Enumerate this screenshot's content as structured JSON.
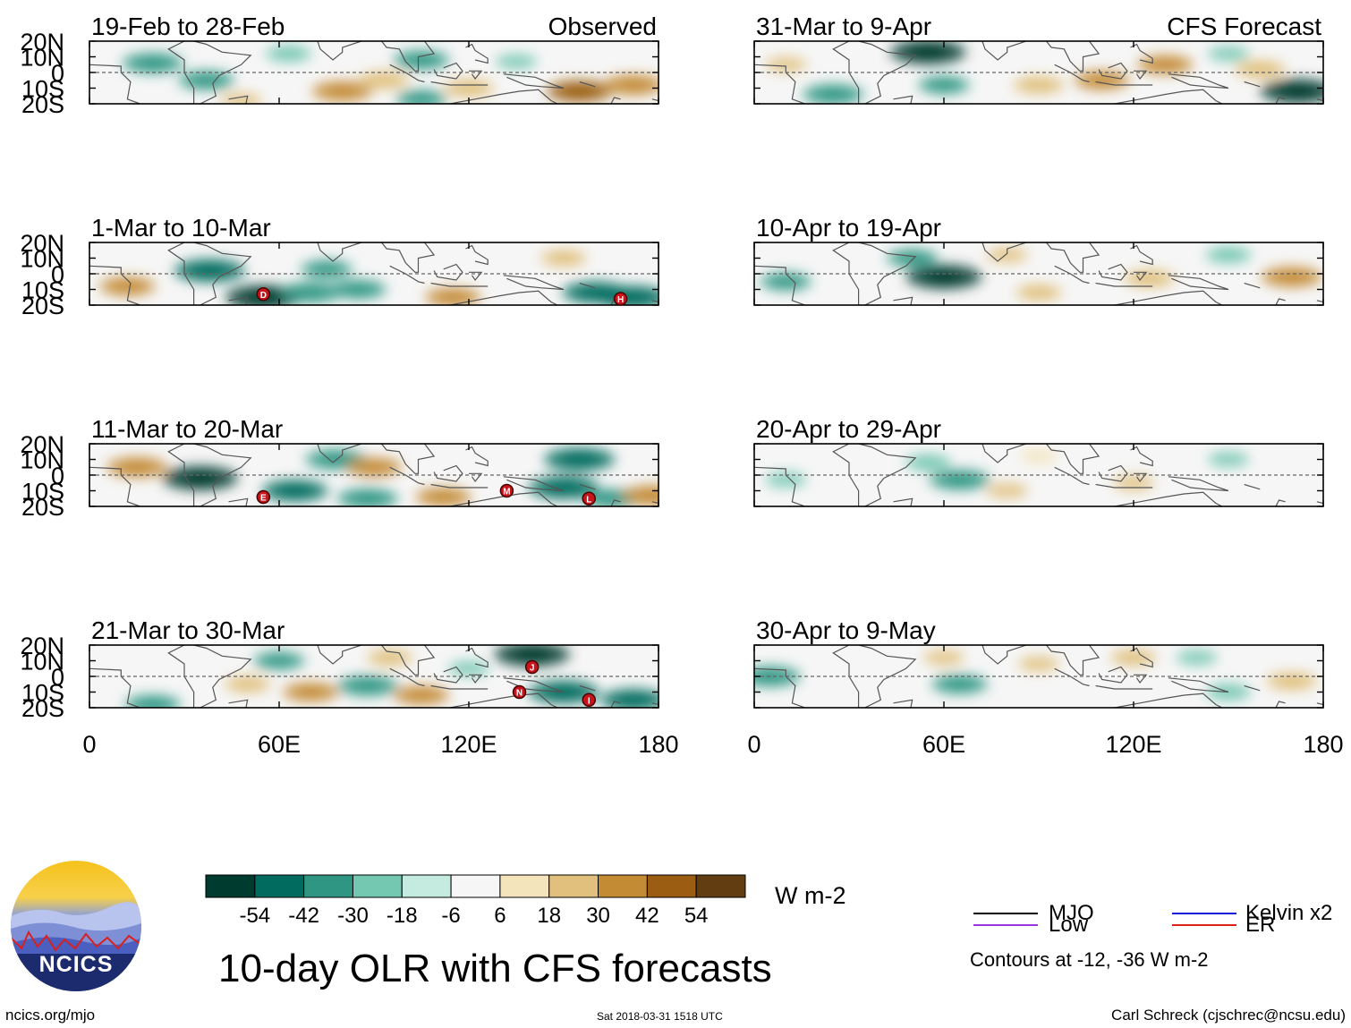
{
  "figure": {
    "title": "10-day OLR with CFS forecasts",
    "observed_label": "Observed",
    "forecast_label": "CFS Forecast"
  },
  "chart_data": {
    "type": "heatmap",
    "title": "10-day OLR with CFS forecasts",
    "variable": "OLR anomaly",
    "units": "W m-2",
    "x_ticks": [
      "0",
      "60E",
      "120E",
      "180"
    ],
    "x_range": [
      0,
      180
    ],
    "y_ticks": [
      "20N",
      "10N",
      "0",
      "10S",
      "20S"
    ],
    "y_range": [
      -20,
      20
    ],
    "colorbar": {
      "labels": [
        "-54",
        "-42",
        "-30",
        "-18",
        "-6",
        "6",
        "18",
        "30",
        "42",
        "54"
      ],
      "colors": [
        "#003b2f",
        "#006b5e",
        "#2f9684",
        "#74c7b0",
        "#c5eadf",
        "#f6f6f6",
        "#f4e4bb",
        "#e0c07c",
        "#c48b35",
        "#9a5d12",
        "#633d12"
      ]
    },
    "panels": [
      {
        "column": "Observed",
        "period": "19-Feb to 28-Feb",
        "blobs": [
          {
            "lon": 20,
            "lat": 6,
            "value": -40
          },
          {
            "lon": 37,
            "lat": -5,
            "value": -35
          },
          {
            "lon": 63,
            "lat": 12,
            "value": -25
          },
          {
            "lon": 105,
            "lat": 8,
            "value": -35
          },
          {
            "lon": 135,
            "lat": 7,
            "value": -20
          },
          {
            "lon": 105,
            "lat": -17,
            "value": -30
          },
          {
            "lon": 80,
            "lat": -12,
            "value": 40
          },
          {
            "lon": 93,
            "lat": -5,
            "value": 30
          },
          {
            "lon": 120,
            "lat": -10,
            "value": 30
          },
          {
            "lon": 155,
            "lat": -12,
            "value": 45
          },
          {
            "lon": 172,
            "lat": -8,
            "value": 40
          },
          {
            "lon": 48,
            "lat": -18,
            "value": 20
          }
        ]
      },
      {
        "column": "Observed",
        "period": "1-Mar to 10-Mar",
        "blobs": [
          {
            "lon": 38,
            "lat": 2,
            "value": -50
          },
          {
            "lon": 55,
            "lat": -15,
            "value": -55
          },
          {
            "lon": 70,
            "lat": -12,
            "value": -40
          },
          {
            "lon": 75,
            "lat": 3,
            "value": -30
          },
          {
            "lon": 85,
            "lat": -10,
            "value": -35
          },
          {
            "lon": 160,
            "lat": -12,
            "value": -45
          },
          {
            "lon": 172,
            "lat": -15,
            "value": -50
          },
          {
            "lon": 12,
            "lat": -8,
            "value": 35
          },
          {
            "lon": 115,
            "lat": -15,
            "value": 35
          },
          {
            "lon": 150,
            "lat": 10,
            "value": 25
          }
        ]
      },
      {
        "column": "Observed",
        "period": "11-Mar to 20-Mar",
        "blobs": [
          {
            "lon": 35,
            "lat": -2,
            "value": -55
          },
          {
            "lon": 65,
            "lat": -10,
            "value": -45
          },
          {
            "lon": 88,
            "lat": -15,
            "value": -40
          },
          {
            "lon": 78,
            "lat": 10,
            "value": -40
          },
          {
            "lon": 155,
            "lat": 10,
            "value": -50
          },
          {
            "lon": 150,
            "lat": -8,
            "value": -50
          },
          {
            "lon": 165,
            "lat": -15,
            "value": -35
          },
          {
            "lon": 15,
            "lat": 5,
            "value": 40
          },
          {
            "lon": 90,
            "lat": 5,
            "value": 35
          },
          {
            "lon": 112,
            "lat": -14,
            "value": 35
          },
          {
            "lon": 178,
            "lat": -13,
            "value": 40
          }
        ]
      },
      {
        "column": "Observed",
        "period": "21-Mar to 30-Mar",
        "blobs": [
          {
            "lon": 140,
            "lat": 14,
            "value": -55
          },
          {
            "lon": 150,
            "lat": -10,
            "value": -50
          },
          {
            "lon": 172,
            "lat": -15,
            "value": -45
          },
          {
            "lon": 88,
            "lat": -6,
            "value": -40
          },
          {
            "lon": 60,
            "lat": 10,
            "value": -30
          },
          {
            "lon": 20,
            "lat": -18,
            "value": -35
          },
          {
            "lon": 120,
            "lat": 5,
            "value": -20
          },
          {
            "lon": 70,
            "lat": -10,
            "value": 35
          },
          {
            "lon": 105,
            "lat": -12,
            "value": 35
          },
          {
            "lon": 50,
            "lat": -5,
            "value": 25
          },
          {
            "lon": 95,
            "lat": 12,
            "value": 25
          }
        ]
      },
      {
        "column": "CFS Forecast",
        "period": "31-Mar to 9-Apr",
        "blobs": [
          {
            "lon": 55,
            "lat": 13,
            "value": -55
          },
          {
            "lon": 25,
            "lat": -14,
            "value": -40
          },
          {
            "lon": 60,
            "lat": -8,
            "value": -30
          },
          {
            "lon": 172,
            "lat": -12,
            "value": -55
          },
          {
            "lon": 150,
            "lat": 12,
            "value": -20
          },
          {
            "lon": 90,
            "lat": -8,
            "value": 30
          },
          {
            "lon": 110,
            "lat": -5,
            "value": 35
          },
          {
            "lon": 130,
            "lat": 5,
            "value": 35
          },
          {
            "lon": 160,
            "lat": 2,
            "value": 30
          },
          {
            "lon": 10,
            "lat": 5,
            "value": 20
          }
        ]
      },
      {
        "column": "CFS Forecast",
        "period": "10-Apr to 19-Apr",
        "blobs": [
          {
            "lon": 60,
            "lat": -2,
            "value": -55
          },
          {
            "lon": 50,
            "lat": 10,
            "value": -30
          },
          {
            "lon": 10,
            "lat": -5,
            "value": -30
          },
          {
            "lon": 150,
            "lat": 12,
            "value": -25
          },
          {
            "lon": 90,
            "lat": -12,
            "value": 25
          },
          {
            "lon": 125,
            "lat": -3,
            "value": 30
          },
          {
            "lon": 170,
            "lat": -2,
            "value": 40
          },
          {
            "lon": 80,
            "lat": 12,
            "value": 20
          }
        ]
      },
      {
        "column": "CFS Forecast",
        "period": "20-Apr to 29-Apr",
        "blobs": [
          {
            "lon": 65,
            "lat": -3,
            "value": -40
          },
          {
            "lon": 55,
            "lat": 8,
            "value": -25
          },
          {
            "lon": 10,
            "lat": -3,
            "value": -20
          },
          {
            "lon": 150,
            "lat": 10,
            "value": -20
          },
          {
            "lon": 80,
            "lat": -10,
            "value": 20
          },
          {
            "lon": 120,
            "lat": -5,
            "value": 20
          },
          {
            "lon": 90,
            "lat": 12,
            "value": 15
          }
        ]
      },
      {
        "column": "CFS Forecast",
        "period": "30-Apr to 9-May",
        "blobs": [
          {
            "lon": 65,
            "lat": -5,
            "value": -35
          },
          {
            "lon": 5,
            "lat": 0,
            "value": -40
          },
          {
            "lon": 140,
            "lat": 12,
            "value": -20
          },
          {
            "lon": 150,
            "lat": -10,
            "value": -25
          },
          {
            "lon": 90,
            "lat": 8,
            "value": 20
          },
          {
            "lon": 120,
            "lat": 12,
            "value": 25
          },
          {
            "lon": 170,
            "lat": -3,
            "value": 30
          },
          {
            "lon": 60,
            "lat": 12,
            "value": 20
          }
        ]
      }
    ],
    "storm_labels": [
      {
        "panel": 1,
        "label": "D",
        "lon": 55,
        "lat": -13
      },
      {
        "panel": 1,
        "label": "H",
        "lon": 168,
        "lat": -16
      },
      {
        "panel": 2,
        "label": "E",
        "lon": 55,
        "lat": -14
      },
      {
        "panel": 2,
        "label": "M",
        "lon": 132,
        "lat": -10
      },
      {
        "panel": 2,
        "label": "L",
        "lon": 158,
        "lat": -15
      },
      {
        "panel": 3,
        "label": "J",
        "lon": 140,
        "lat": 6
      },
      {
        "panel": 3,
        "label": "N",
        "lon": 136,
        "lat": -10
      },
      {
        "panel": 3,
        "label": "I",
        "lon": 158,
        "lat": -15
      }
    ],
    "legend": [
      {
        "name": "MJO",
        "color": "#000000"
      },
      {
        "name": "Kelvin x2",
        "color": "#1a1ad6"
      },
      {
        "name": "Low",
        "color": "#9a35e0"
      },
      {
        "name": "ER",
        "color": "#e0201a"
      }
    ],
    "contour_note": "Contours at -12, -36 W m-2"
  },
  "footer": {
    "logo_text": "NCICS",
    "website": "ncics.org/mjo",
    "timestamp": "Sat 2018-03-31 1518 UTC",
    "author": "Carl Schreck (cjschrec@ncsu.edu)"
  }
}
